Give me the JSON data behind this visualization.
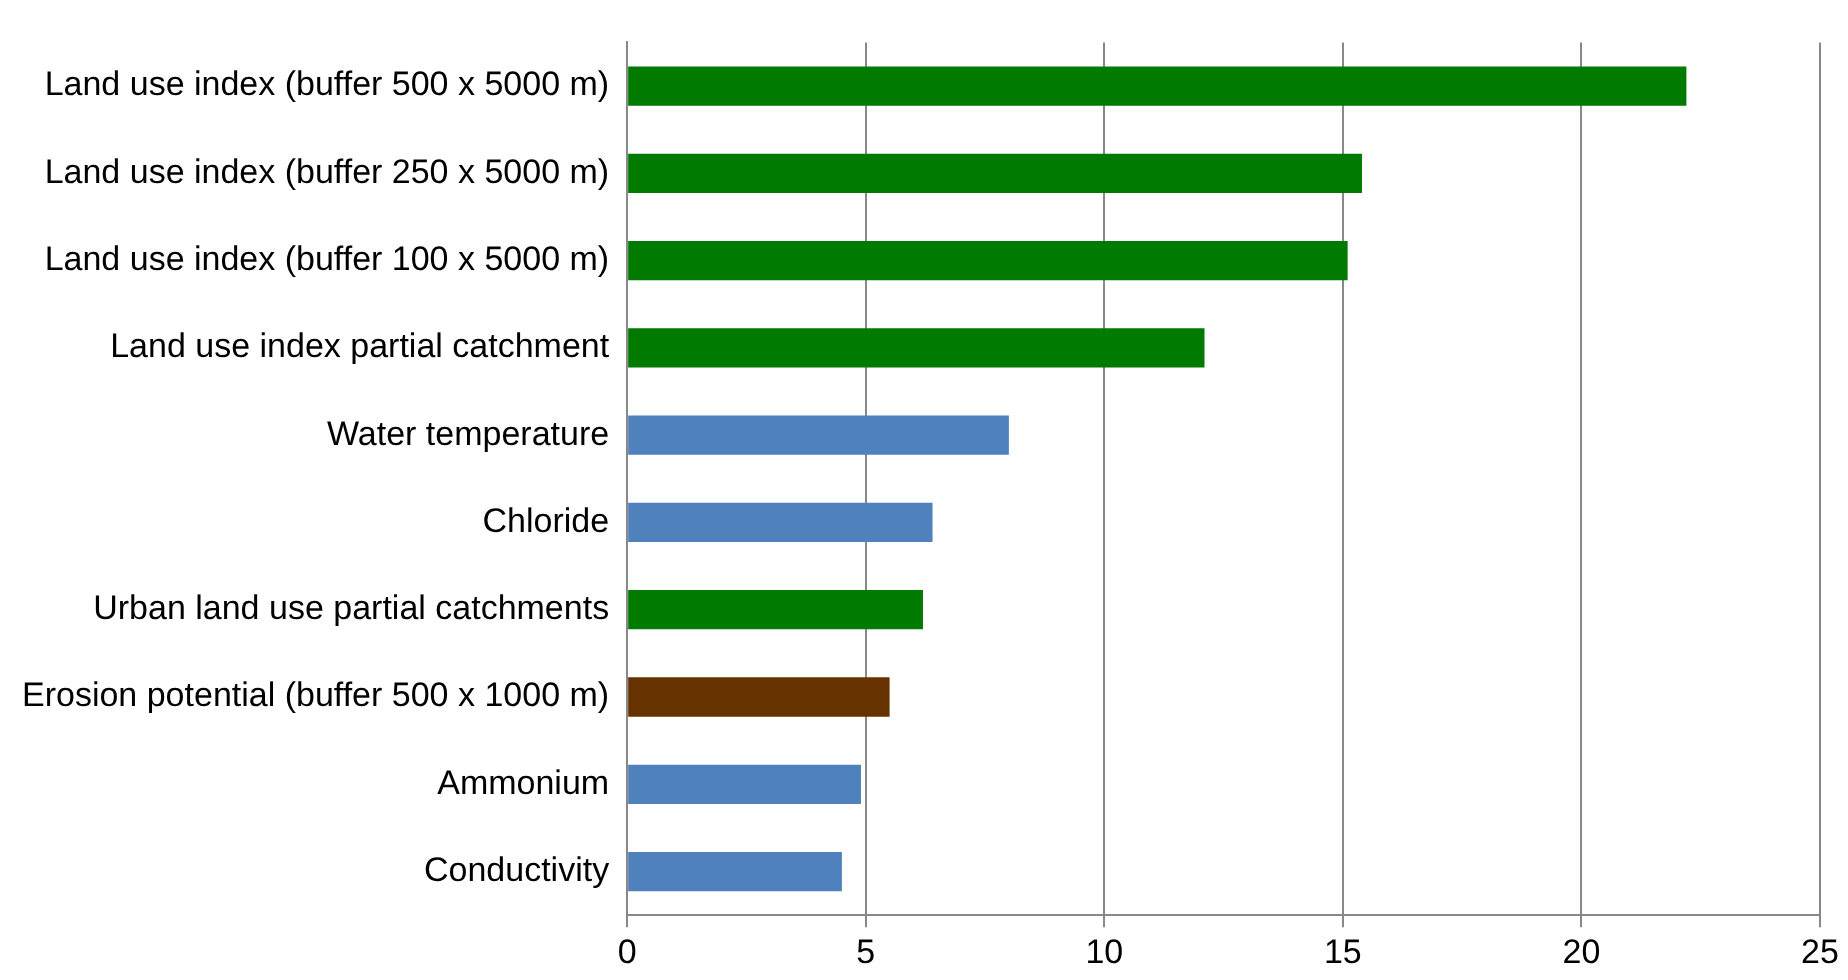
{
  "chart_data": {
    "type": "bar",
    "orientation": "horizontal",
    "categories": [
      "Land use index (buffer 500 x 5000 m)",
      "Land use index (buffer 250 x 5000 m)",
      "Land use index (buffer 100 x 5000 m)",
      "Land use index partial catchment",
      "Water temperature",
      "Chloride",
      "Urban land use partial catchments",
      "Erosion potential (buffer 500 x 1000 m)",
      "Ammonium",
      "Conductivity"
    ],
    "values": [
      22.2,
      15.4,
      15.1,
      12.1,
      8.0,
      6.4,
      6.2,
      5.5,
      4.9,
      4.5
    ],
    "colors": [
      "#007a00",
      "#007a00",
      "#007a00",
      "#007a00",
      "#4f81bd",
      "#4f81bd",
      "#007a00",
      "#663300",
      "#4f81bd",
      "#4f81bd"
    ],
    "xlim": [
      0,
      25
    ],
    "xticks": [
      0,
      5,
      10,
      15,
      20,
      25
    ],
    "grid": "x"
  }
}
